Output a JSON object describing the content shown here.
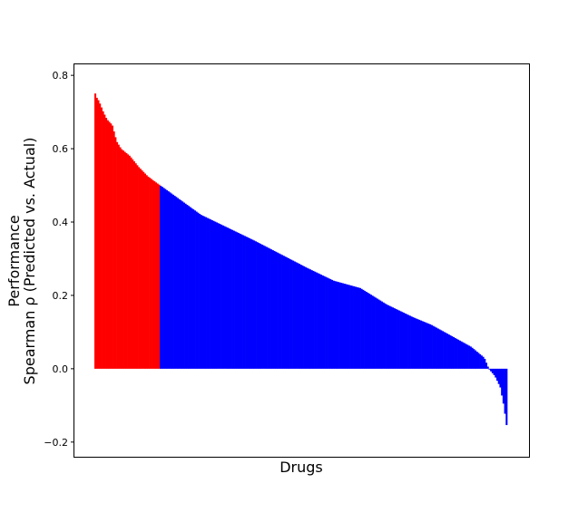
{
  "chart_data": {
    "type": "bar",
    "title": "",
    "xlabel": "Drugs",
    "ylabel_line1": "Performance",
    "ylabel_line2": "Spearman ρ (Predicted vs. Actual)",
    "ylim": [
      -0.24,
      0.83
    ],
    "y_ticks": [
      -0.2,
      0.0,
      0.2,
      0.4,
      0.6,
      0.8
    ],
    "y_tick_labels": [
      "−0.2",
      "0.0",
      "0.2",
      "0.4",
      "0.6",
      "0.8"
    ],
    "x_ticks_shown": false,
    "grid": false,
    "legend": "none",
    "drug_count": 265,
    "threshold": 0.5,
    "colors": {
      "above_threshold": "#ff0000",
      "below_threshold": "#0000ff"
    },
    "profile": [
      [
        0,
        0.79
      ],
      [
        1,
        0.745
      ],
      [
        5,
        0.73
      ],
      [
        10,
        0.7
      ],
      [
        14,
        0.68
      ],
      [
        20,
        0.665
      ],
      [
        25,
        0.62
      ],
      [
        30,
        0.6
      ],
      [
        40,
        0.58
      ],
      [
        50,
        0.55
      ],
      [
        60,
        0.525
      ],
      [
        70,
        0.507
      ],
      [
        80,
        0.49
      ],
      [
        100,
        0.455
      ],
      [
        120,
        0.42
      ],
      [
        150,
        0.385
      ],
      [
        180,
        0.35
      ],
      [
        200,
        0.325
      ],
      [
        240,
        0.275
      ],
      [
        270,
        0.24
      ],
      [
        300,
        0.22
      ],
      [
        330,
        0.175
      ],
      [
        360,
        0.14
      ],
      [
        380,
        0.12
      ],
      [
        410,
        0.08
      ],
      [
        425,
        0.06
      ],
      [
        440,
        0.03
      ],
      [
        445,
        0.0
      ],
      [
        452,
        -0.02
      ],
      [
        458,
        -0.05
      ],
      [
        462,
        -0.1
      ],
      [
        465,
        -0.15
      ],
      [
        466,
        -0.18
      ]
    ]
  }
}
